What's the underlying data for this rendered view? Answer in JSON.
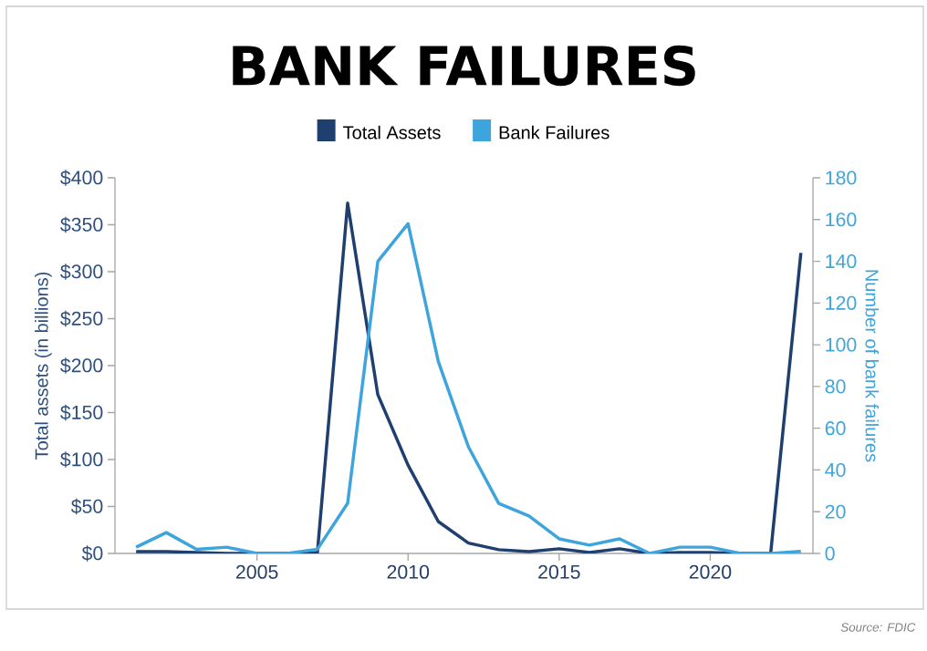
{
  "chart_data": {
    "type": "line",
    "title": "BANK FAILURES",
    "ylabel": "Total assets (in billions)",
    "y2label": "Number of bank failures",
    "annotations": [
      "Source: FDIC"
    ],
    "x": [
      2001,
      2002,
      2003,
      2004,
      2005,
      2006,
      2007,
      2008,
      2009,
      2010,
      2011,
      2012,
      2013,
      2014,
      2015,
      2016,
      2017,
      2018,
      2019,
      2020,
      2021,
      2022,
      2023
    ],
    "series": [
      {
        "name": "Total Assets",
        "color": "#1f3f6e",
        "values": [
          2,
          2,
          1,
          0,
          0,
          0,
          1,
          373,
          169,
          94,
          34,
          11,
          4,
          2,
          5,
          1,
          5,
          0,
          1,
          1,
          0,
          0,
          320
        ]
      },
      {
        "name": "Bank Failures",
        "color": "#3ea4dc",
        "axis": "y2",
        "values": [
          3,
          10,
          2,
          3,
          0,
          0,
          2,
          24,
          140,
          158,
          92,
          51,
          24,
          18,
          7,
          4,
          7,
          0,
          3,
          3,
          0,
          0,
          1
        ]
      }
    ],
    "xlim": [
      2000.3,
      2023.4
    ],
    "xticks": [
      2005,
      2010,
      2015,
      2020
    ],
    "ylim": [
      0,
      400
    ],
    "yticks": [
      {
        "value": 0,
        "label": "$0"
      },
      {
        "value": 50,
        "label": "$50"
      },
      {
        "value": 100,
        "label": "$100"
      },
      {
        "value": 150,
        "label": "$150"
      },
      {
        "value": 200,
        "label": "$200"
      },
      {
        "value": 250,
        "label": "$250"
      },
      {
        "value": 300,
        "label": "$300"
      },
      {
        "value": 350,
        "label": "$350"
      },
      {
        "value": 400,
        "label": "$400"
      }
    ],
    "y2lim": [
      0,
      180
    ],
    "y2ticks": [
      0,
      20,
      40,
      60,
      80,
      100,
      120,
      140,
      160,
      180
    ],
    "legend": "top",
    "grid": false,
    "marker": "none",
    "line_style": "solid"
  }
}
